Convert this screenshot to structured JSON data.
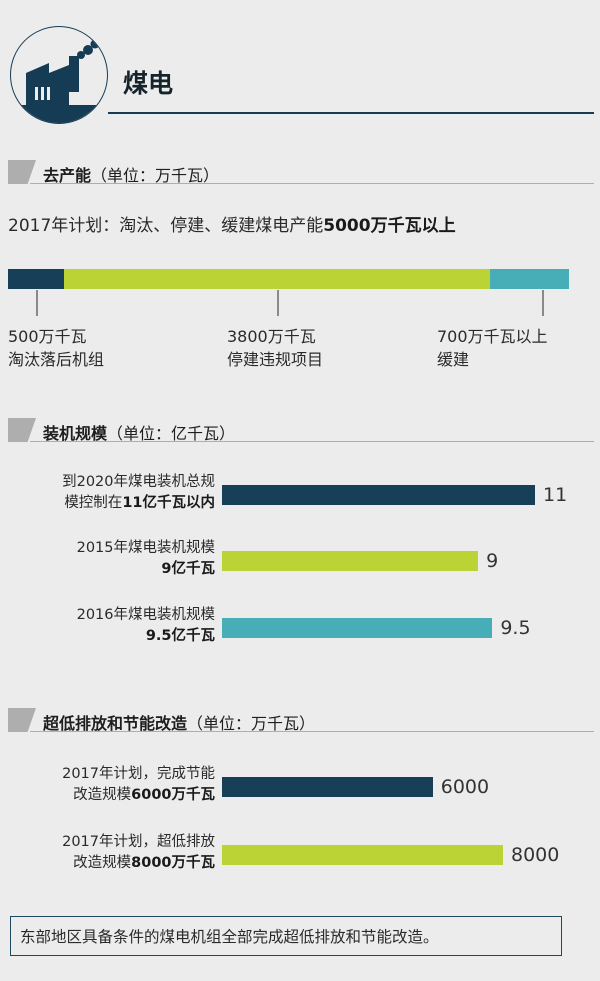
{
  "header": {
    "title": "煤电"
  },
  "colors": {
    "dark": "#183f58",
    "lime": "#bcd336",
    "teal": "#47adb7",
    "navy": "#163c55"
  },
  "icons": [
    "factory-icon"
  ],
  "section1": {
    "title": "去产能",
    "unit": "（单位：万千瓦）",
    "plan_prefix": "2017年计划：淘汰、停建、缓建煤电产能",
    "plan_bold": "5000万千瓦以上",
    "labels": [
      {
        "line1": "500万千瓦",
        "line2": "淘汰落后机组"
      },
      {
        "line1": "3800万千瓦",
        "line2": "停建违规项目"
      },
      {
        "line1": "700万千瓦以上",
        "line2": "缓建"
      }
    ]
  },
  "section2": {
    "title": "装机规模",
    "unit": "（单位：亿千瓦）",
    "rows": [
      {
        "line1_prefix": "到2020年煤电装机总规",
        "line1_bold": "",
        "line2_prefix": "模控制在",
        "line2_bold": "11亿千瓦以内",
        "value_label": "11"
      },
      {
        "line1_prefix": "2015年煤电装机规模",
        "line1_bold": "",
        "line2_prefix": "",
        "line2_bold": "9亿千瓦",
        "value_label": "9"
      },
      {
        "line1_prefix": "2016年煤电装机规模",
        "line1_bold": "",
        "line2_prefix": "",
        "line2_bold": "9.5亿千瓦",
        "value_label": "9.5"
      }
    ]
  },
  "section3": {
    "title": "超低排放和节能改造",
    "unit": "（单位：万千瓦）",
    "rows": [
      {
        "line1_prefix": "2017年计划，完成节能",
        "line1_bold": "",
        "line2_prefix": "改造规模",
        "line2_bold": "6000万千瓦",
        "value_label": "6000"
      },
      {
        "line1_prefix": "2017年计划，超低排放",
        "line1_bold": "",
        "line2_prefix": "改造规模",
        "line2_bold": "8000万千瓦",
        "value_label": "8000"
      }
    ]
  },
  "footer": {
    "text": "东部地区具备条件的煤电机组全部完成超低排放和节能改造。"
  },
  "chart_data": [
    {
      "type": "bar",
      "stacked": true,
      "orientation": "horizontal",
      "title": "去产能",
      "unit": "万千瓦",
      "series": [
        {
          "name": "淘汰落后机组",
          "values": [
            500
          ],
          "color": "#183f58"
        },
        {
          "name": "停建违规项目",
          "values": [
            3800
          ],
          "color": "#bcd336"
        },
        {
          "name": "缓建",
          "values": [
            700
          ],
          "color": "#47adb7"
        }
      ],
      "total": 5000
    },
    {
      "type": "bar",
      "orientation": "horizontal",
      "title": "装机规模",
      "unit": "亿千瓦",
      "categories": [
        "到2020年煤电装机总规模控制在11亿千瓦以内",
        "2015年煤电装机规模9亿千瓦",
        "2016年煤电装机规模9.5亿千瓦"
      ],
      "values": [
        11,
        9,
        9.5
      ],
      "colors": [
        "#183f58",
        "#bcd336",
        "#47adb7"
      ]
    },
    {
      "type": "bar",
      "orientation": "horizontal",
      "title": "超低排放和节能改造",
      "unit": "万千瓦",
      "categories": [
        "2017年计划，完成节能改造规模6000万千瓦",
        "2017年计划，超低排放改造规模8000万千瓦"
      ],
      "values": [
        6000,
        8000
      ],
      "colors": [
        "#183f58",
        "#bcd336"
      ]
    }
  ]
}
